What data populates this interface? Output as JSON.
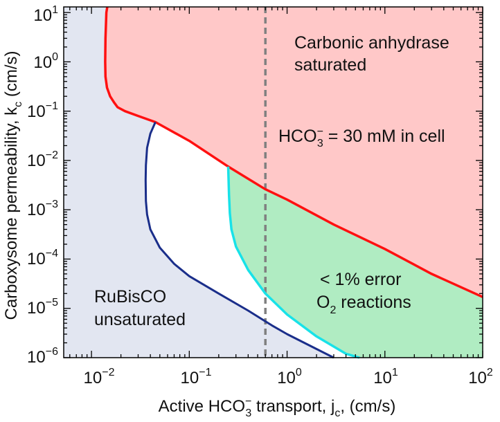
{
  "chart_data": {
    "type": "line",
    "title": "",
    "xlabel": {
      "pre": "Active HCO",
      "sub": "3",
      "sup": "−",
      "post": " transport, j",
      "sub2": "c",
      "post2": ", (cm/s)"
    },
    "ylabel": {
      "pre": "Carboxysome permeability, k",
      "sub": "c",
      "post": " (cm/s)"
    },
    "xscale": "log",
    "yscale": "log",
    "xlim": [
      0.0052,
      100
    ],
    "ylim": [
      1e-06,
      13
    ],
    "x_ticks": [
      {
        "base": "10",
        "exp": "−2"
      },
      {
        "base": "10",
        "exp": "−1"
      },
      {
        "base": "10",
        "exp": "0"
      },
      {
        "base": "10",
        "exp": "1"
      },
      {
        "base": "10",
        "exp": "2"
      }
    ],
    "y_ticks": [
      {
        "base": "10",
        "exp": "−6"
      },
      {
        "base": "10",
        "exp": "−5"
      },
      {
        "base": "10",
        "exp": "−4"
      },
      {
        "base": "10",
        "exp": "−3"
      },
      {
        "base": "10",
        "exp": "−2"
      },
      {
        "base": "10",
        "exp": "−1"
      },
      {
        "base": "10",
        "exp": "0"
      },
      {
        "base": "10",
        "exp": "1"
      }
    ],
    "regions": [
      {
        "name": "Carbonic anhydrase saturated",
        "color": "#ffc8c8"
      },
      {
        "name": "RuBisCO unsaturated",
        "color": "#e2e6f1"
      },
      {
        "name": "< 1% error O2 reactions",
        "color": "#b0ecc2"
      }
    ],
    "series": [
      {
        "name": "Carbonic anhydrase saturation boundary",
        "color": "#ff1010",
        "x": [
          0.0145,
          0.0142,
          0.0139,
          0.0138,
          0.0139,
          0.0144,
          0.0155,
          0.017,
          0.0185,
          0.022,
          0.03,
          0.045,
          0.1,
          0.25,
          0.6,
          1,
          3,
          10,
          30,
          100
        ],
        "y": [
          13,
          10,
          3,
          1,
          0.5,
          0.3,
          0.2,
          0.15,
          0.12,
          0.1,
          0.08,
          0.06,
          0.025,
          0.0075,
          0.0026,
          0.0016,
          0.0005,
          0.00016,
          5e-05,
          1.7e-05
        ]
      },
      {
        "name": "RuBisCO saturation boundary",
        "color": "#1a2e8a",
        "x": [
          0.045,
          0.04,
          0.037,
          0.036,
          0.0358,
          0.036,
          0.037,
          0.04,
          0.05,
          0.07,
          0.1,
          0.2,
          0.4,
          0.7,
          1,
          2,
          3
        ],
        "y": [
          0.06,
          0.035,
          0.018,
          0.008,
          0.004,
          0.0015,
          0.0008,
          0.0004,
          0.00017,
          8e-05,
          4.5e-05,
          2e-05,
          9e-06,
          4.5e-06,
          3e-06,
          1.5e-06,
          1e-06
        ]
      },
      {
        "name": "1% error boundary",
        "color": "#18e2e8",
        "x": [
          0.25,
          0.255,
          0.26,
          0.27,
          0.3,
          0.4,
          0.6,
          1,
          2,
          4,
          5.5
        ],
        "y": [
          0.0075,
          0.002,
          0.00085,
          0.0004,
          0.00018,
          6e-05,
          2e-05,
          7.5e-06,
          2.7e-06,
          1.2e-06,
          1e-06
        ]
      }
    ],
    "reference_line": {
      "orientation": "vertical",
      "x": 0.6,
      "style": "dashed",
      "color": "#808080"
    },
    "annotations": [
      {
        "lines": [
          "Carbonic anhydrase",
          "saturated"
        ]
      },
      {
        "pre": "HCO",
        "sub": "3",
        "sup": "−",
        "post": "  = 30 mM in cell"
      },
      {
        "lines": [
          "RuBisCO",
          "unsaturated"
        ]
      },
      {
        "line1": "< 1% error",
        "l2pre": "O",
        "l2sub": "2",
        "l2post": " reactions"
      }
    ]
  }
}
